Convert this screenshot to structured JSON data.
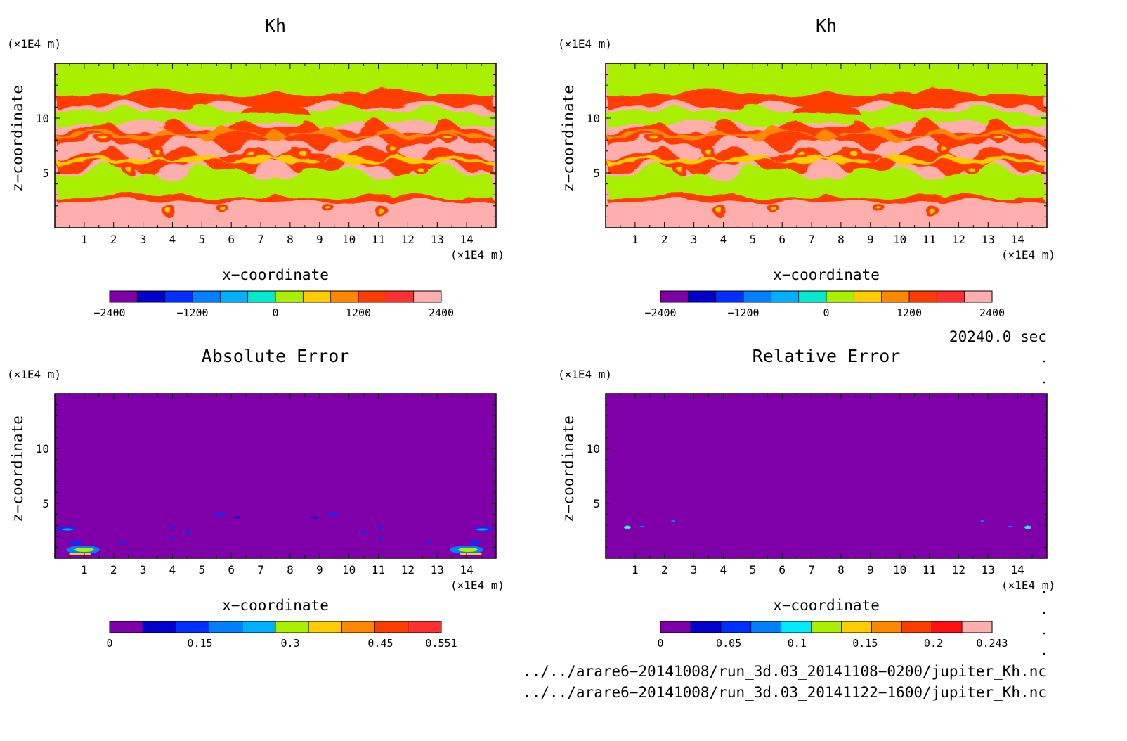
{
  "chart_data": [
    {
      "type": "heatmap",
      "title": "Kh",
      "xlabel": "x−coordinate",
      "ylabel": "z−coordinate",
      "x_unit": "(×1E4 m)",
      "y_unit": "(×1E4 m)",
      "xlim": [
        0,
        15
      ],
      "ylim": [
        0,
        15
      ],
      "x_ticks": [
        "1",
        "2",
        "3",
        "4",
        "5",
        "6",
        "7",
        "8",
        "9",
        "10",
        "11",
        "12",
        "13",
        "14"
      ],
      "y_ticks": [
        "5",
        "10"
      ],
      "colorbar": {
        "colors": [
          "#7f00a9",
          "#0000cc",
          "#0030ff",
          "#0080ff",
          "#00b0ff",
          "#00eacb",
          "#a8f000",
          "#ffcc00",
          "#ff8800",
          "#ff3c00",
          "#ff3030",
          "#ffaeae"
        ],
        "labels": [
          "−2400",
          "−1200",
          "0",
          "1200",
          "2400"
        ],
        "label_values": [
          -2400,
          -1200,
          0,
          1200,
          2400
        ],
        "range": [
          -2400,
          2400
        ]
      },
      "field": "mirror_symmetric_layers"
    },
    {
      "type": "heatmap",
      "title": "Kh",
      "xlabel": "x−coordinate",
      "ylabel": "z−coordinate",
      "x_unit": "(×1E4 m)",
      "y_unit": "(×1E4 m)",
      "xlim": [
        0,
        15
      ],
      "ylim": [
        0,
        15
      ],
      "x_ticks": [
        "1",
        "2",
        "3",
        "4",
        "5",
        "6",
        "7",
        "8",
        "9",
        "10",
        "11",
        "12",
        "13",
        "14"
      ],
      "y_ticks": [
        "5",
        "10"
      ],
      "colorbar": {
        "colors": [
          "#7f00a9",
          "#0000cc",
          "#0030ff",
          "#0080ff",
          "#00b0ff",
          "#00eacb",
          "#a8f000",
          "#ffcc00",
          "#ff8800",
          "#ff3c00",
          "#ff3030",
          "#ffaeae"
        ],
        "labels": [
          "−2400",
          "−1200",
          "0",
          "1200",
          "2400"
        ],
        "label_values": [
          -2400,
          -1200,
          0,
          1200,
          2400
        ],
        "range": [
          -2400,
          2400
        ]
      },
      "field": "mirror_symmetric_layers"
    },
    {
      "type": "heatmap",
      "title": "Absolute Error",
      "xlabel": "x−coordinate",
      "ylabel": "z−coordinate",
      "x_unit": "(×1E4 m)",
      "y_unit": "(×1E4 m)",
      "xlim": [
        0,
        15
      ],
      "ylim": [
        0,
        15
      ],
      "x_ticks": [
        "1",
        "2",
        "3",
        "4",
        "5",
        "6",
        "7",
        "8",
        "9",
        "10",
        "11",
        "12",
        "13",
        "14"
      ],
      "y_ticks": [
        "5",
        "10"
      ],
      "colorbar": {
        "colors": [
          "#7f00a9",
          "#0000cc",
          "#0030ff",
          "#0080ff",
          "#00b0ff",
          "#a8f000",
          "#ffcc00",
          "#ff8800",
          "#ff3c00",
          "#ff3030"
        ],
        "labels": [
          "0",
          "0.15",
          "0.3",
          "0.45",
          "0.551"
        ],
        "label_values": [
          0,
          0.15,
          0.3,
          0.45,
          0.551
        ],
        "range": [
          0,
          0.551
        ]
      },
      "background_value": 0,
      "field": "sparse_spots_near_bottom"
    },
    {
      "type": "heatmap",
      "title": "Relative Error",
      "xlabel": "x−coordinate",
      "ylabel": "z−coordinate",
      "x_unit": "(×1E4 m)",
      "y_unit": "(×1E4 m)",
      "xlim": [
        0,
        15
      ],
      "ylim": [
        0,
        15
      ],
      "x_ticks": [
        "1",
        "2",
        "3",
        "4",
        "5",
        "6",
        "7",
        "8",
        "9",
        "10",
        "11",
        "12",
        "13",
        "14"
      ],
      "y_ticks": [
        "5",
        "10"
      ],
      "colorbar": {
        "colors": [
          "#7f00a9",
          "#0000cc",
          "#0030ff",
          "#0080ff",
          "#00eaff",
          "#a8f000",
          "#ffcc00",
          "#ff8800",
          "#ff3c00",
          "#ff1010",
          "#ffaeae"
        ],
        "labels": [
          "0",
          "0.05",
          "0.1",
          "0.15",
          "0.2",
          "0.243"
        ],
        "label_values": [
          0,
          0.05,
          0.1,
          0.15,
          0.2,
          0.243
        ],
        "range": [
          0,
          0.243
        ]
      },
      "background_value": 0,
      "field": "few_spots"
    }
  ],
  "time_label": "20240.0 sec",
  "files": [
    "../../arare6−20141008/run_3d.03_20141108−0200/jupiter_Kh.nc",
    "../../arare6−20141008/run_3d.03_20141122−1600/jupiter_Kh.nc"
  ]
}
